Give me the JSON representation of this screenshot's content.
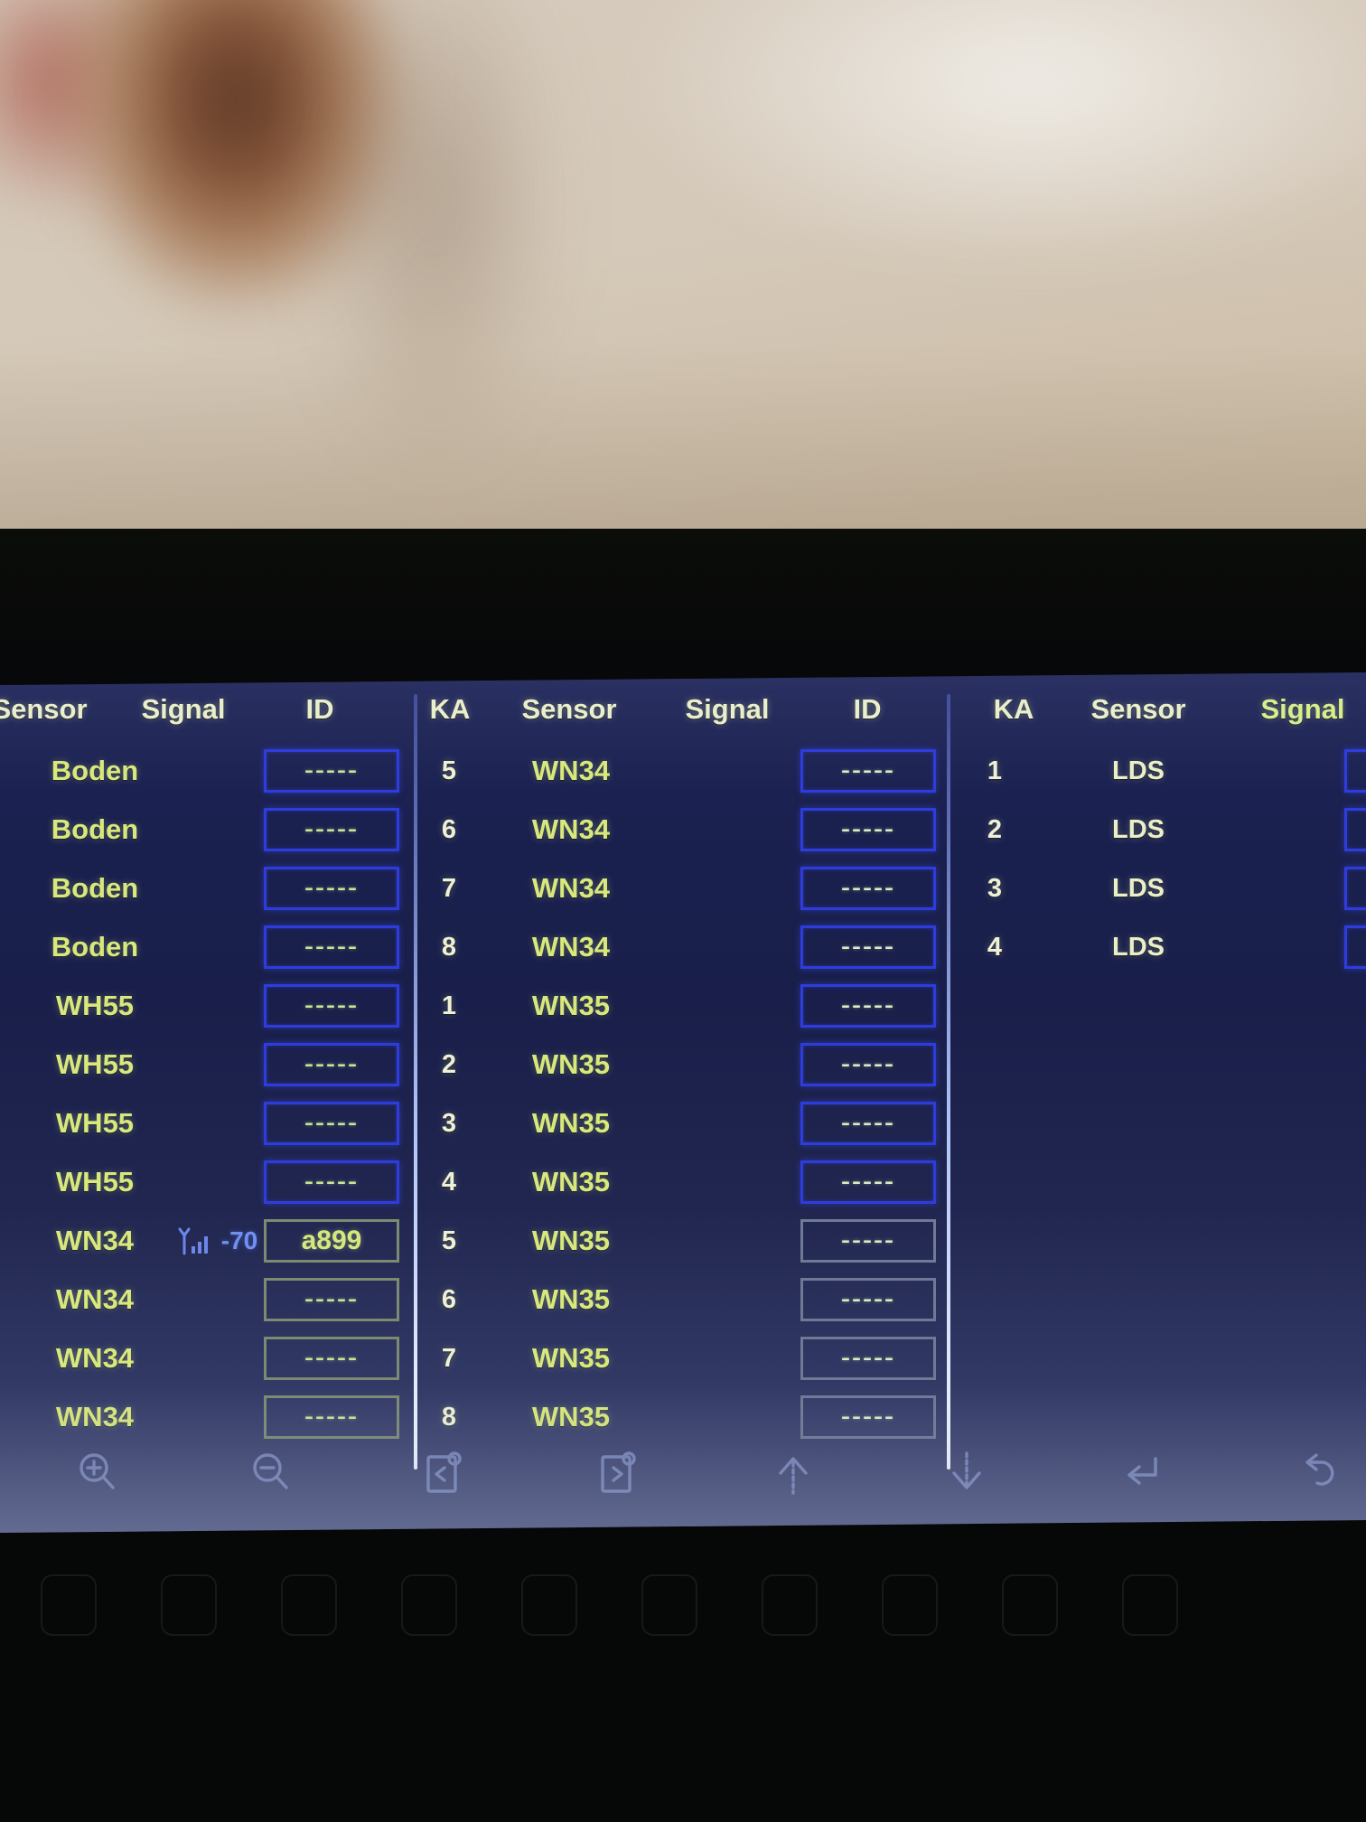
{
  "device": {
    "columns": [
      {
        "headers": {
          "sensor": "Sensor",
          "signal": "Signal",
          "id": "ID"
        },
        "rows": [
          {
            "sensor": "Boden",
            "signal": "",
            "id": "-----",
            "box": "blue"
          },
          {
            "sensor": "Boden",
            "signal": "",
            "id": "-----",
            "box": "blue"
          },
          {
            "sensor": "Boden",
            "signal": "",
            "id": "-----",
            "box": "blue"
          },
          {
            "sensor": "Boden",
            "signal": "",
            "id": "-----",
            "box": "blue"
          },
          {
            "sensor": "WH55",
            "signal": "",
            "id": "-----",
            "box": "blue"
          },
          {
            "sensor": "WH55",
            "signal": "",
            "id": "-----",
            "box": "blue"
          },
          {
            "sensor": "WH55",
            "signal": "",
            "id": "-----",
            "box": "blue"
          },
          {
            "sensor": "WH55",
            "signal": "",
            "id": "-----",
            "box": "blue"
          },
          {
            "sensor": "WN34",
            "signal": "-70",
            "signal_icon": "signal-strength-icon",
            "id": "a899",
            "box": "green"
          },
          {
            "sensor": "WN34",
            "signal": "",
            "id": "-----",
            "box": "green"
          },
          {
            "sensor": "WN34",
            "signal": "",
            "id": "-----",
            "box": "green"
          },
          {
            "sensor": "WN34",
            "signal": "",
            "id": "-----",
            "box": "green"
          }
        ]
      },
      {
        "headers": {
          "ka": "KA",
          "sensor": "Sensor",
          "signal": "Signal",
          "id": "ID"
        },
        "rows": [
          {
            "ka": "5",
            "sensor": "WN34",
            "signal": "",
            "id": "-----",
            "box": "blue"
          },
          {
            "ka": "6",
            "sensor": "WN34",
            "signal": "",
            "id": "-----",
            "box": "blue"
          },
          {
            "ka": "7",
            "sensor": "WN34",
            "signal": "",
            "id": "-----",
            "box": "blue"
          },
          {
            "ka": "8",
            "sensor": "WN34",
            "signal": "",
            "id": "-----",
            "box": "blue"
          },
          {
            "ka": "1",
            "sensor": "WN35",
            "signal": "",
            "id": "-----",
            "box": "blue"
          },
          {
            "ka": "2",
            "sensor": "WN35",
            "signal": "",
            "id": "-----",
            "box": "blue"
          },
          {
            "ka": "3",
            "sensor": "WN35",
            "signal": "",
            "id": "-----",
            "box": "blue"
          },
          {
            "ka": "4",
            "sensor": "WN35",
            "signal": "",
            "id": "-----",
            "box": "blue"
          },
          {
            "ka": "5",
            "sensor": "WN35",
            "signal": "",
            "id": "-----",
            "box": "gray"
          },
          {
            "ka": "6",
            "sensor": "WN35",
            "signal": "",
            "id": "-----",
            "box": "gray"
          },
          {
            "ka": "7",
            "sensor": "WN35",
            "signal": "",
            "id": "-----",
            "box": "gray"
          },
          {
            "ka": "8",
            "sensor": "WN35",
            "signal": "",
            "id": "-----",
            "box": "gray"
          }
        ]
      },
      {
        "headers": {
          "ka": "KA",
          "sensor": "Sensor",
          "signal": "Signal"
        },
        "rows": [
          {
            "ka": "1",
            "sensor": "LDS",
            "signal": "",
            "id": "",
            "box": "blue"
          },
          {
            "ka": "2",
            "sensor": "LDS",
            "signal": "",
            "id": "",
            "box": "blue"
          },
          {
            "ka": "3",
            "sensor": "LDS",
            "signal": "",
            "id": "",
            "box": "blue"
          },
          {
            "ka": "4",
            "sensor": "LDS",
            "signal": "",
            "id": "",
            "box": "blue"
          }
        ]
      }
    ],
    "toolbar_icons": [
      {
        "name": "zoom-in-icon"
      },
      {
        "name": "zoom-out-icon"
      },
      {
        "name": "page-back-icon"
      },
      {
        "name": "page-forward-icon"
      },
      {
        "name": "arrow-up-icon"
      },
      {
        "name": "arrow-down-icon"
      },
      {
        "name": "enter-icon"
      },
      {
        "name": "undo-icon"
      }
    ],
    "colors": {
      "screen_bg": "#1b2150",
      "box_blue": "#2f3cdd",
      "box_gray_green": "#7d8a72",
      "box_gray_blue": "#6f7a96",
      "sensor_text": "#d8e87c",
      "header_text": "#e9eecb",
      "header_green": "#d7ee8c",
      "signal_blue": "#7390f0",
      "dash_green": "#c8e596"
    }
  }
}
